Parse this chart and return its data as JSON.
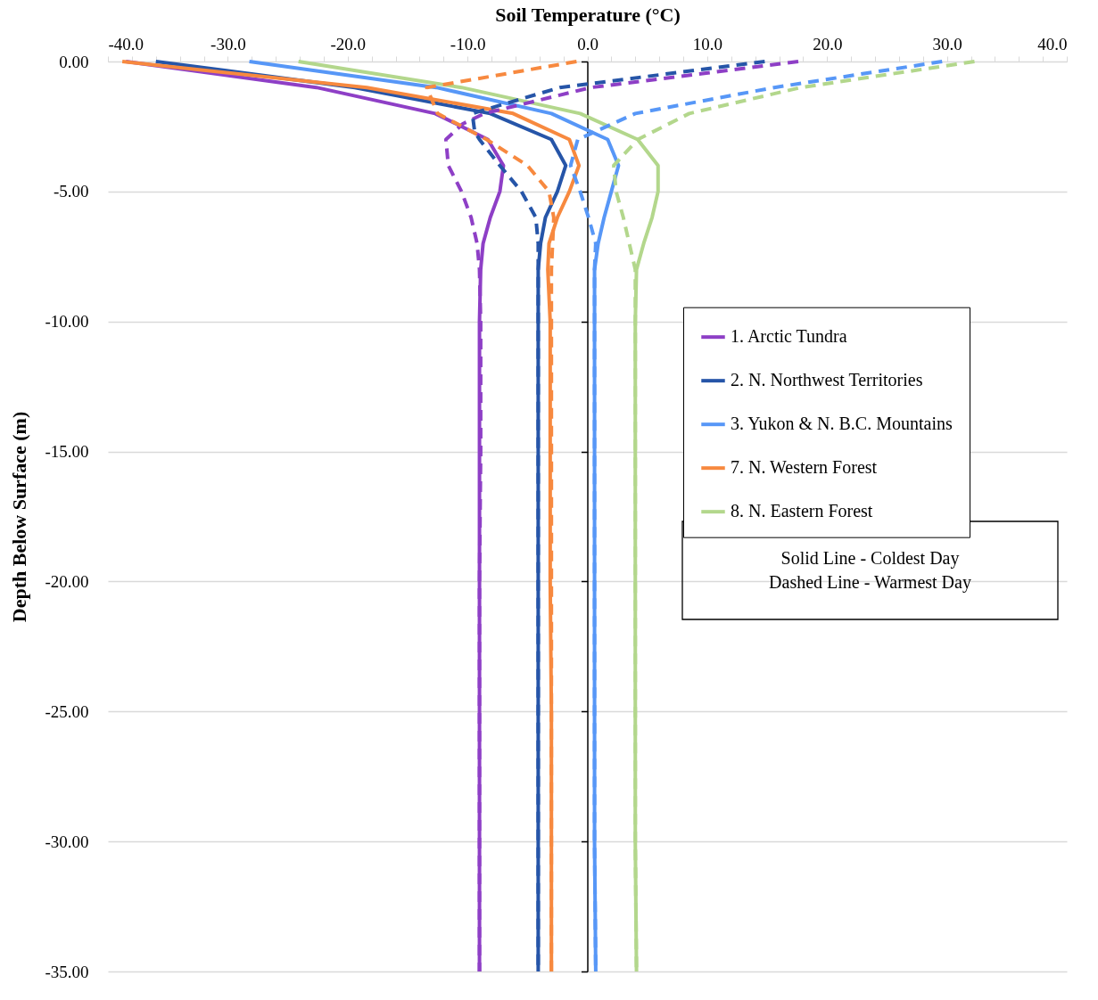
{
  "chart_data": {
    "type": "line",
    "xlabel": "Soil Temperature (°C)",
    "ylabel": "Depth Below Surface (m)",
    "xlim": [
      -40,
      40
    ],
    "ylim": [
      -35,
      0
    ],
    "xticks": [
      {
        "value": -40,
        "label": "-40.0"
      },
      {
        "value": -38,
        "label": null
      },
      {
        "value": -36,
        "label": null
      },
      {
        "value": -34,
        "label": null
      },
      {
        "value": -32,
        "label": null
      },
      {
        "value": -30,
        "label": "-30.0"
      },
      {
        "value": -28,
        "label": null
      },
      {
        "value": -26,
        "label": null
      },
      {
        "value": -24,
        "label": null
      },
      {
        "value": -22,
        "label": null
      },
      {
        "value": -20,
        "label": "-20.0"
      },
      {
        "value": -18,
        "label": null
      },
      {
        "value": -16,
        "label": null
      },
      {
        "value": -14,
        "label": null
      },
      {
        "value": -12,
        "label": null
      },
      {
        "value": -10,
        "label": "-10.0"
      },
      {
        "value": -8,
        "label": null
      },
      {
        "value": -6,
        "label": null
      },
      {
        "value": -4,
        "label": null
      },
      {
        "value": -2,
        "label": null
      },
      {
        "value": 0,
        "label": "0.0"
      },
      {
        "value": 2,
        "label": null
      },
      {
        "value": 4,
        "label": null
      },
      {
        "value": 6,
        "label": null
      },
      {
        "value": 8,
        "label": null
      },
      {
        "value": 10,
        "label": "10.0"
      },
      {
        "value": 12,
        "label": null
      },
      {
        "value": 14,
        "label": null
      },
      {
        "value": 16,
        "label": null
      },
      {
        "value": 18,
        "label": null
      },
      {
        "value": 20,
        "label": "20.0"
      },
      {
        "value": 22,
        "label": null
      },
      {
        "value": 24,
        "label": null
      },
      {
        "value": 26,
        "label": null
      },
      {
        "value": 28,
        "label": null
      },
      {
        "value": 30,
        "label": "30.0"
      },
      {
        "value": 32,
        "label": null
      },
      {
        "value": 34,
        "label": null
      },
      {
        "value": 36,
        "label": null
      },
      {
        "value": 38,
        "label": null
      },
      {
        "value": 40,
        "label": "40.0"
      }
    ],
    "yticks": [
      {
        "value": 0,
        "label": "0.00"
      },
      {
        "value": -5,
        "label": "-5.00"
      },
      {
        "value": -10,
        "label": "-10.00"
      },
      {
        "value": -15,
        "label": "-15.00"
      },
      {
        "value": -20,
        "label": "-20.00"
      },
      {
        "value": -25,
        "label": "-25.00"
      },
      {
        "value": -30,
        "label": "-30.00"
      },
      {
        "value": -35,
        "label": "-35.00"
      }
    ],
    "grid": "y",
    "legend": "right",
    "marker": "none",
    "annotations": [
      "Solid Line - Coldest Day",
      "Dashed Line - Warmest Day"
    ],
    "series": [
      {
        "name": "1. Arctic Tundra",
        "color": "#8e3fc6",
        "line_style": "solid",
        "x": [
          -38.5,
          -22.6,
          -12.7,
          -8.3,
          -7.0,
          -7.3,
          -8.1,
          -8.7,
          -8.9,
          -9.0,
          -9.0,
          -9.0,
          -9.0,
          -9.0,
          -9.0
        ],
        "values": [
          0,
          -1,
          -2,
          -3,
          -4,
          -5,
          -6,
          -7,
          -8,
          -10,
          -15,
          -20,
          -25,
          -30,
          -35
        ]
      },
      {
        "name": "2. N. Northwest Territories",
        "color": "#2655a8",
        "line_style": "solid",
        "x": [
          -36.0,
          -19.4,
          -8.1,
          -3.0,
          -1.8,
          -2.5,
          -3.5,
          -3.9,
          -4.1,
          -4.1,
          -4.1,
          -4.1,
          -4.1,
          -4.1,
          -4.1
        ],
        "values": [
          0,
          -1,
          -2,
          -3,
          -4,
          -5,
          -6,
          -7,
          -8,
          -10,
          -15,
          -20,
          -25,
          -30,
          -35
        ]
      },
      {
        "name": "3. Yukon & N. B.C. Mountains",
        "color": "#5797f7",
        "line_style": "solid",
        "x": [
          -28.2,
          -12.6,
          -3.0,
          1.7,
          2.6,
          2.0,
          1.4,
          0.9,
          0.6,
          0.6,
          0.6,
          0.6,
          0.6,
          0.6,
          0.7
        ],
        "values": [
          0,
          -1,
          -2,
          -3,
          -4,
          -5,
          -6,
          -7,
          -8,
          -10,
          -15,
          -20,
          -25,
          -30,
          -35
        ]
      },
      {
        "name": "7. N. Western Forest",
        "color": "#f7893f",
        "line_style": "solid",
        "x": [
          -38.8,
          -18.4,
          -6.2,
          -1.5,
          -0.7,
          -1.5,
          -2.5,
          -3.2,
          -3.3,
          -3.1,
          -3.1,
          -3.1,
          -3.0,
          -3.0,
          -3.0
        ],
        "values": [
          0,
          -1,
          -2,
          -3,
          -4,
          -5,
          -6,
          -7,
          -8,
          -10,
          -15,
          -20,
          -25,
          -30,
          -35
        ]
      },
      {
        "name": "8. N. Eastern Forest",
        "color": "#b3d78c",
        "line_style": "solid",
        "x": [
          -24.1,
          -10.5,
          -0.6,
          4.2,
          5.9,
          5.9,
          5.4,
          4.7,
          4.1,
          4.0,
          4.0,
          4.0,
          4.0,
          4.0,
          4.1
        ],
        "values": [
          0,
          -1,
          -2,
          -3,
          -4,
          -5,
          -6,
          -7,
          -8,
          -10,
          -15,
          -20,
          -25,
          -30,
          -35
        ]
      },
      {
        "color": "#8e3fc6",
        "line_style": "dashed",
        "x": [
          17.6,
          0.3,
          -8.6,
          -10.4,
          -11.8,
          -11.6,
          -10.5,
          -9.7,
          -9.2,
          -9.0,
          -8.9,
          -8.9,
          -9.0,
          -9.0,
          -9.0,
          -9.0
        ],
        "values": [
          0,
          -1,
          -2,
          -2.4,
          -3,
          -4,
          -5,
          -6,
          -7,
          -8,
          -10,
          -15,
          -20,
          -25,
          -30,
          -35
        ]
      },
      {
        "color": "#2655a8",
        "line_style": "dashed",
        "x": [
          14.8,
          -2.3,
          -9.6,
          -9.4,
          -9.0,
          -7.3,
          -5.5,
          -4.3,
          -4.1,
          -4.1,
          -4.1,
          -4.1,
          -4.1,
          -4.1,
          -4.1,
          -4.1
        ],
        "values": [
          0,
          -1,
          -2,
          -2.7,
          -3,
          -4,
          -5,
          -6,
          -7,
          -8,
          -10,
          -15,
          -20,
          -25,
          -30,
          -35
        ]
      },
      {
        "color": "#5797f7",
        "line_style": "dashed",
        "x": [
          29.6,
          15.6,
          4.0,
          -0.8,
          -1.4,
          -0.6,
          0.1,
          0.7,
          0.6,
          0.6,
          0.6,
          0.6,
          0.6,
          0.6,
          0.7
        ],
        "values": [
          0,
          -1,
          -2,
          -3,
          -4,
          -5,
          -6,
          -7,
          -8,
          -10,
          -15,
          -20,
          -25,
          -30,
          -35
        ]
      },
      {
        "color": "#f7893f",
        "line_style": "dashed",
        "x": [
          -0.9,
          -13.4,
          -12.5,
          -8.4,
          -5.0,
          -3.2,
          -2.8,
          -2.9,
          -3.0,
          -3.0,
          -3.0,
          -3.0,
          -3.0,
          -3.0,
          -3.0
        ],
        "values": [
          0,
          -1,
          -2,
          -3,
          -4,
          -5,
          -6,
          -7,
          -8,
          -10,
          -15,
          -20,
          -25,
          -30,
          -35
        ]
      },
      {
        "color": "#b3d78c",
        "line_style": "dashed",
        "x": [
          32.3,
          17.8,
          8.5,
          4.2,
          2.2,
          2.4,
          3.0,
          3.5,
          4.0,
          4.0,
          4.0,
          4.0,
          4.0,
          4.0,
          4.1
        ],
        "values": [
          0,
          -1,
          -2,
          -3,
          -4,
          -5,
          -6,
          -7,
          -8,
          -10,
          -15,
          -20,
          -25,
          -30,
          -35
        ]
      }
    ]
  }
}
